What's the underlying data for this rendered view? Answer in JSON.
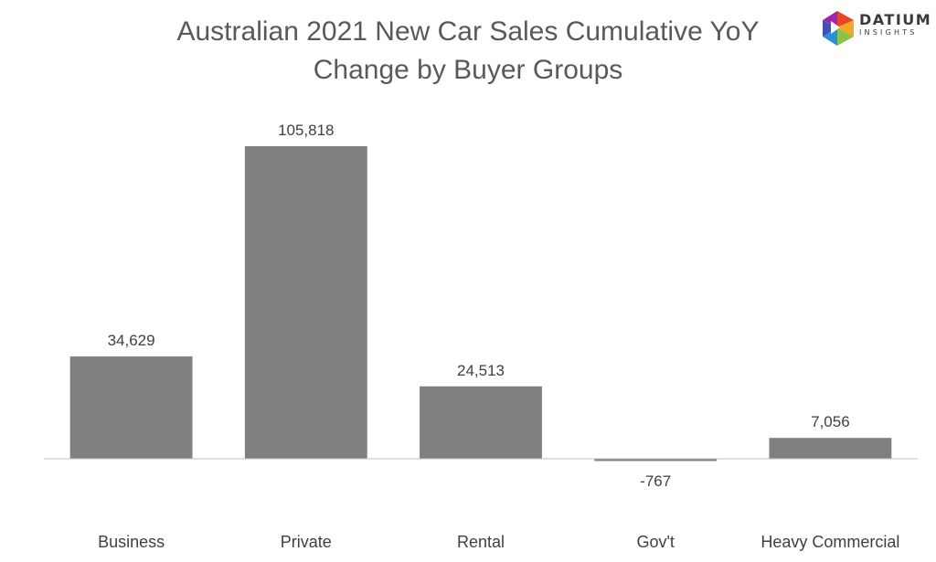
{
  "chart_data": {
    "type": "bar",
    "title_line1": "Australian 2021 New Car Sales Cumulative YoY",
    "title_line2": "Change by Buyer Groups",
    "categories": [
      "Business",
      "Private",
      "Rental",
      "Gov't",
      "Heavy Commercial"
    ],
    "values": [
      34629,
      105818,
      24513,
      -767,
      7056
    ],
    "data_labels": [
      "34,629",
      "105,818",
      "24,513",
      "-767",
      "7,056"
    ],
    "xlabel": "",
    "ylabel": "",
    "ylim": [
      -767,
      105818
    ],
    "grid": false,
    "legend": "none",
    "colors": {
      "bar": "#7f7f7f",
      "negative_label": "#ff0000",
      "label": "#404040",
      "axis": "#bfbfbf"
    }
  },
  "logo": {
    "name": "DATIUM",
    "subtitle": "INSIGHTS",
    "icon": "datium-logo-icon"
  }
}
